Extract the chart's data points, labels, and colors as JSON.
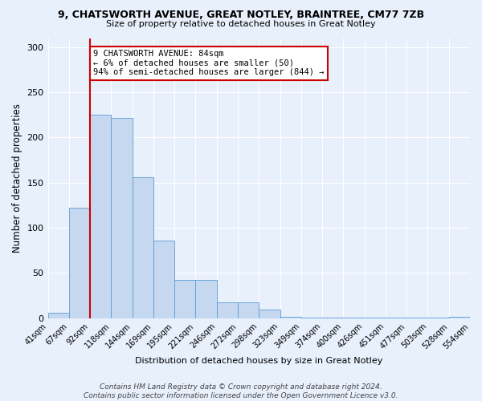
{
  "title": "9, CHATSWORTH AVENUE, GREAT NOTLEY, BRAINTREE, CM77 7ZB",
  "subtitle": "Size of property relative to detached houses in Great Notley",
  "xlabel": "Distribution of detached houses by size in Great Notley",
  "ylabel": "Number of detached properties",
  "bar_values": [
    6,
    122,
    225,
    222,
    156,
    86,
    42,
    42,
    18,
    18,
    10,
    2,
    1,
    1,
    1,
    1,
    1,
    1,
    1,
    2
  ],
  "bar_labels": [
    "41sqm",
    "67sqm",
    "92sqm",
    "118sqm",
    "144sqm",
    "169sqm",
    "195sqm",
    "221sqm",
    "246sqm",
    "272sqm",
    "298sqm",
    "323sqm",
    "349sqm",
    "374sqm",
    "400sqm",
    "426sqm",
    "451sqm",
    "477sqm",
    "503sqm",
    "528sqm",
    "554sqm"
  ],
  "bar_color": "#c5d8f0",
  "bar_edge_color": "#5b9bd5",
  "annotation_title": "9 CHATSWORTH AVENUE: 84sqm",
  "annotation_line1": "← 6% of detached houses are smaller (50)",
  "annotation_line2": "94% of semi-detached houses are larger (844) →",
  "annotation_box_color": "#ffffff",
  "annotation_box_edge": "#cc0000",
  "vline_color": "#cc0000",
  "ylim": [
    0,
    310
  ],
  "yticks": [
    0,
    50,
    100,
    150,
    200,
    250,
    300
  ],
  "footer": "Contains HM Land Registry data © Crown copyright and database right 2024.\nContains public sector information licensed under the Open Government Licence v3.0.",
  "bg_color": "#e8f0fb",
  "grid_color": "#ffffff",
  "title_fontsize": 9,
  "subtitle_fontsize": 8,
  "ylabel_fontsize": 8.5,
  "xtick_fontsize": 7,
  "ytick_fontsize": 8,
  "footer_fontsize": 6.5
}
